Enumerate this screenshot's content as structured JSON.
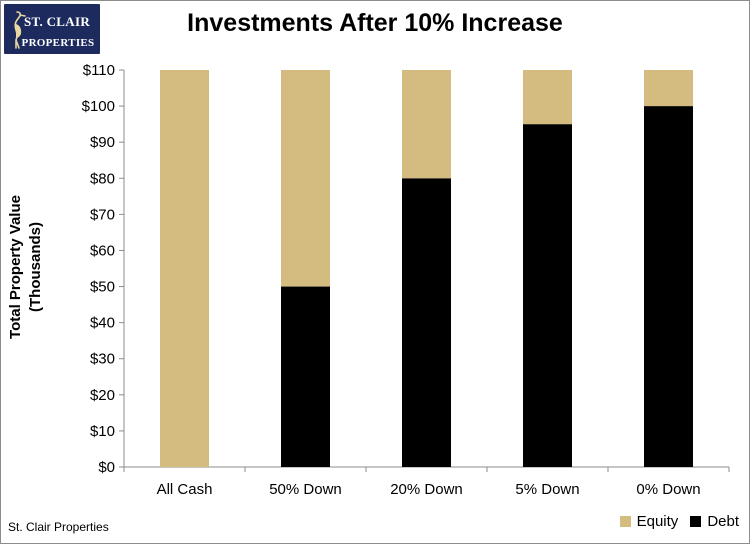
{
  "logo": {
    "line1": "ST. CLAIR",
    "line2": "PROPERTIES"
  },
  "footer": "St. Clair Properties",
  "colors": {
    "equity": "#d4bc80",
    "debt": "#000000",
    "axis": "#8c8c8c",
    "logo_bg": "#1c2a5e"
  },
  "chart_data": {
    "type": "bar",
    "stacked": true,
    "title": "Investments After 10% Increase",
    "ylabel_lines": [
      "Total Property Value",
      "(Thousands)"
    ],
    "xlabel": "",
    "categories": [
      "All Cash",
      "50% Down",
      "20% Down",
      "5% Down",
      "0% Down"
    ],
    "series": [
      {
        "name": "Debt",
        "values": [
          0,
          50,
          80,
          95,
          100
        ]
      },
      {
        "name": "Equity",
        "values": [
          110,
          60,
          30,
          15,
          10
        ]
      }
    ],
    "ylim": [
      0,
      110
    ],
    "yticks": [
      0,
      10,
      20,
      30,
      40,
      50,
      60,
      70,
      80,
      90,
      100,
      110
    ],
    "ytick_labels": [
      "$0",
      "$10",
      "$20",
      "$30",
      "$40",
      "$50",
      "$60",
      "$70",
      "$80",
      "$90",
      "$100",
      "$110"
    ],
    "legend_order": [
      "Equity",
      "Debt"
    ],
    "legend_position": "bottom-right",
    "grid": false
  }
}
